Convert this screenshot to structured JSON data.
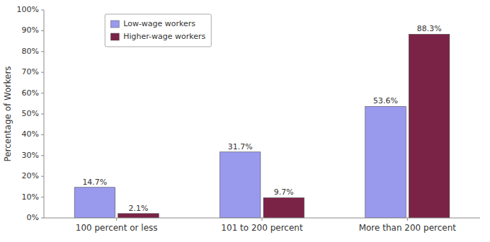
{
  "chart_data": {
    "type": "bar",
    "categories": [
      "100 percent or less",
      "101 to 200 percent",
      "More than 200 percent"
    ],
    "series": [
      {
        "name": "Low-wage workers",
        "color": "#9999ee",
        "values": [
          14.7,
          31.7,
          53.6
        ],
        "value_labels": [
          "14.7%",
          "31.7%",
          "53.6%"
        ]
      },
      {
        "name": "Higher-wage workers",
        "color": "#7b2347",
        "values": [
          2.1,
          9.7,
          88.3
        ],
        "value_labels": [
          "2.1%",
          "9.7%",
          "88.3%"
        ]
      }
    ],
    "ylabel": "Percentage of Workers",
    "ylim": [
      0,
      100
    ],
    "yticks": [
      {
        "value": 0,
        "label": "0%"
      },
      {
        "value": 10,
        "label": "10%"
      },
      {
        "value": 20,
        "label": "20%"
      },
      {
        "value": 30,
        "label": "30%"
      },
      {
        "value": 40,
        "label": "40%"
      },
      {
        "value": 50,
        "label": "50%"
      },
      {
        "value": 60,
        "label": "60%"
      },
      {
        "value": 70,
        "label": "70%"
      },
      {
        "value": 80,
        "label": "80%"
      },
      {
        "value": 90,
        "label": "90%"
      },
      {
        "value": 100,
        "label": "100%"
      }
    ],
    "grid": false,
    "legend": "upper left",
    "data_labels": true
  }
}
